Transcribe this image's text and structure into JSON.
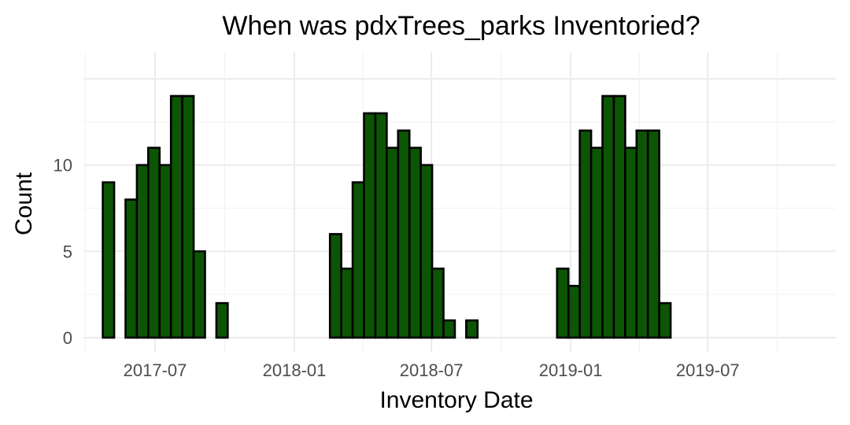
{
  "chart_data": {
    "type": "bar",
    "title": "When was pdxTrees_parks Inventoried?",
    "xlabel": "Inventory Date",
    "ylabel": "Count",
    "x_ticks": [
      "2017-07",
      "2018-01",
      "2018-07",
      "2019-01",
      "2019-07"
    ],
    "y_ticks": [
      0,
      5,
      10
    ],
    "ylim": [
      0,
      14
    ],
    "bin_start": "2017-04-23",
    "bin_width_days": 15,
    "values": [
      9,
      0,
      8,
      10,
      11,
      10,
      14,
      14,
      5,
      0,
      2,
      0,
      0,
      0,
      0,
      0,
      0,
      0,
      0,
      0,
      6,
      4,
      9,
      13,
      13,
      11,
      12,
      11,
      10,
      4,
      1,
      0,
      1,
      0,
      0,
      0,
      0,
      0,
      0,
      0,
      4,
      3,
      12,
      11,
      14,
      14,
      11,
      12,
      12,
      2
    ],
    "grid": true,
    "bar_fill": "#0c5505",
    "bar_stroke": "#000000"
  }
}
